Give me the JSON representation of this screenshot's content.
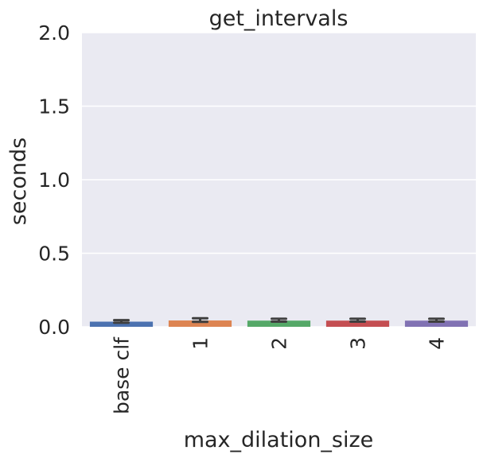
{
  "chart_data": {
    "type": "bar",
    "title": "get_intervals",
    "xlabel": "max_dilation_size",
    "ylabel": "seconds",
    "categories": [
      "base clf",
      "1",
      "2",
      "3",
      "4"
    ],
    "values": [
      0.035,
      0.043,
      0.042,
      0.042,
      0.042
    ],
    "error_low": [
      0.028,
      0.034,
      0.035,
      0.035,
      0.035
    ],
    "error_high": [
      0.045,
      0.058,
      0.055,
      0.055,
      0.055
    ],
    "ylim": [
      0,
      2.0
    ],
    "yticks": [
      "0.0",
      "0.5",
      "1.0",
      "1.5",
      "2.0"
    ],
    "ytick_values": [
      0,
      0.5,
      1.0,
      1.5,
      2.0
    ],
    "grid": true,
    "colors": [
      "#4c72b0",
      "#dd8452",
      "#55a868",
      "#c44e52",
      "#8172b3"
    ],
    "background": "#eaeaf2",
    "errorbar_color": "#3f3f3f"
  }
}
